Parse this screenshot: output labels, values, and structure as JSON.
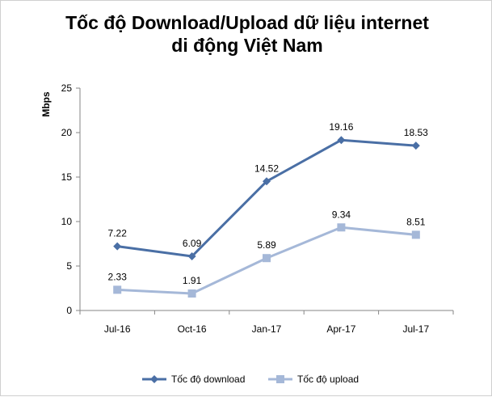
{
  "chart_data": {
    "type": "line",
    "title_lines": [
      "Tốc độ Download/Upload dữ liệu internet",
      "di động Việt Nam"
    ],
    "ylabel": "Mbps",
    "xlabel": "",
    "categories": [
      "Jul-16",
      "Oct-16",
      "Jan-17",
      "Apr-17",
      "Jul-17"
    ],
    "ylim": [
      0,
      25
    ],
    "yticks": [
      0,
      5,
      10,
      15,
      20,
      25
    ],
    "grid": false,
    "legend_position": "bottom",
    "series": [
      {
        "name": "Tốc độ download",
        "values": [
          7.22,
          6.09,
          14.52,
          19.16,
          18.53
        ],
        "labels": [
          "7.22",
          "6.09",
          "14.52",
          "19.16",
          "18.53"
        ],
        "color": "#4a6fa5",
        "marker": "diamond"
      },
      {
        "name": "Tốc độ upload",
        "values": [
          2.33,
          1.91,
          5.89,
          9.34,
          8.51
        ],
        "labels": [
          "2.33",
          "1.91",
          "5.89",
          "9.34",
          "8.51"
        ],
        "color": "#a5b8d8",
        "marker": "square"
      }
    ]
  }
}
